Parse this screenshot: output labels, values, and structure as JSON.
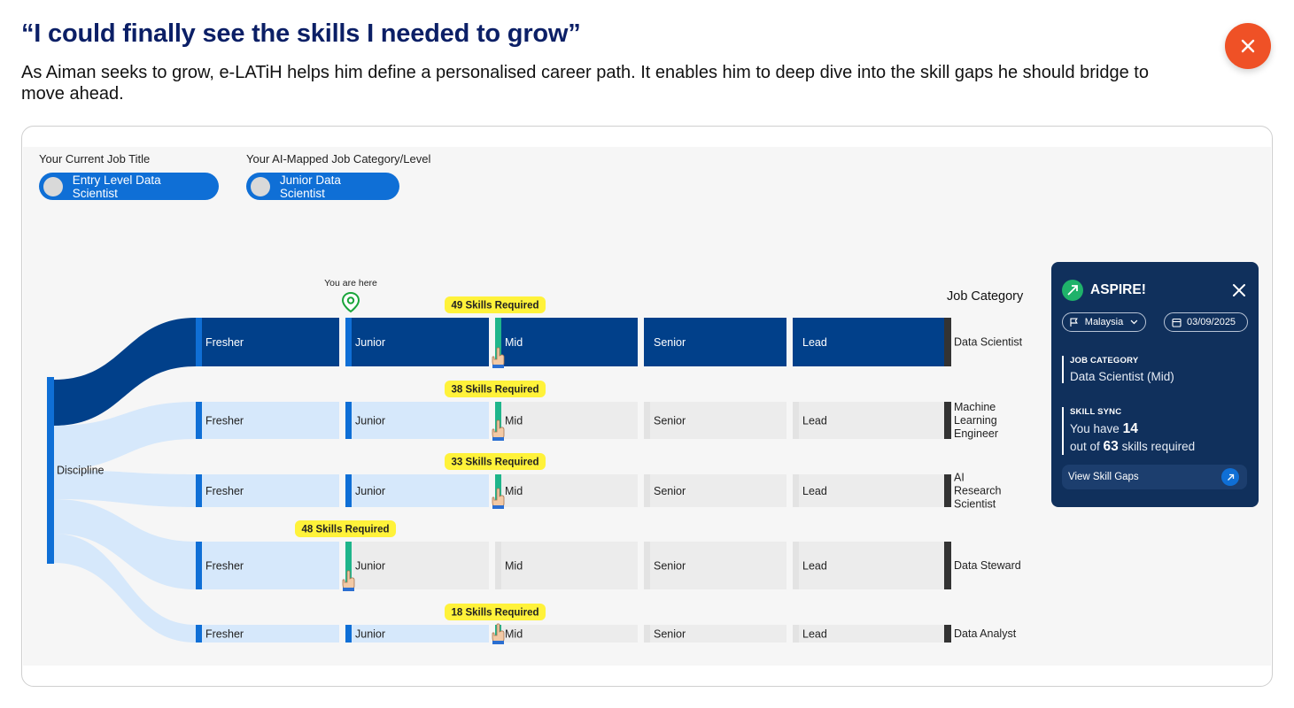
{
  "header": {
    "title": "“I could finally see the skills I needed to grow”",
    "description": "As Aiman seeks to grow, e-LATiH helps him define a personalised career path. It enables him to deep dive into the skill gaps he should bridge to move ahead."
  },
  "close_icon": "close-icon",
  "profile": {
    "current_job_label": "Your Current Job Title",
    "current_job_value": "Entry Level Data Scientist",
    "mapped_label": "Your AI-Mapped Job Category/Level",
    "mapped_value": "Junior Data Scientist"
  },
  "sankey": {
    "root_label": "Discipline",
    "you_are_here": "You are here",
    "column_header": "Job Category",
    "levels": [
      "Fresher",
      "Junior",
      "Mid",
      "Senior",
      "Lead"
    ],
    "categories": [
      {
        "name": "Data Scientist",
        "skills_required": "49 Skills Required",
        "target_level": "Mid",
        "highlighted": true
      },
      {
        "name": "Machine Learning Engineer",
        "skills_required": "38 Skills Required",
        "target_level": "Mid",
        "highlighted": false
      },
      {
        "name": "AI Research Scientist",
        "skills_required": "33 Skills Required",
        "target_level": "Mid",
        "highlighted": false
      },
      {
        "name": "Data Steward",
        "skills_required": "48 Skills Required",
        "target_level": "Junior",
        "highlighted": false
      },
      {
        "name": "Data Analyst",
        "skills_required": "18 Skills Required",
        "target_level": "Mid",
        "highlighted": false
      }
    ],
    "colors": {
      "highlight": "#01408a",
      "accent": "#0f6fd6",
      "light": "#d6e8fb",
      "grey": "#ececec",
      "target": "#1fb58b",
      "badge": "#fff23a",
      "marker": "#1aa53b"
    }
  },
  "aspire_panel": {
    "brand": "ASPIRE!",
    "country": "Malaysia",
    "date": "03/09/2025",
    "job_category_heading": "JOB CATEGORY",
    "job_category_value": "Data Scientist (Mid)",
    "skill_sync_heading": "SKILL SYNC",
    "have_prefix": "You have",
    "have_count": "14",
    "out_of_prefix": "out of",
    "required_count": "63",
    "required_suffix": "skills required",
    "view_gaps": "View Skill Gaps"
  }
}
